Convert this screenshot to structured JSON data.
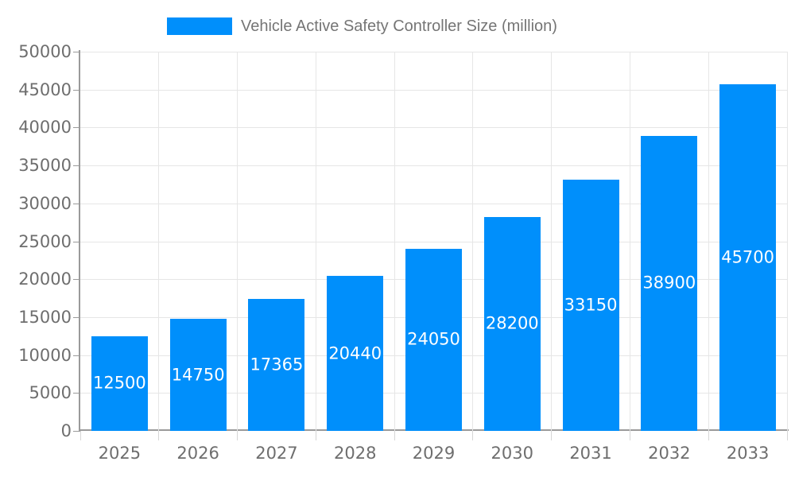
{
  "legend": {
    "series_label": "Vehicle Active Safety Controller Size (million)",
    "position": "top"
  },
  "chart_data": {
    "type": "bar",
    "title": "Vehicle Active Safety Controller Size (million)",
    "categories": [
      "2025",
      "2026",
      "2027",
      "2028",
      "2029",
      "2030",
      "2031",
      "2032",
      "2033"
    ],
    "values": [
      12500,
      14750,
      17365,
      20440,
      24050,
      28200,
      33150,
      38900,
      45700
    ],
    "xlabel": "",
    "ylabel": "",
    "ylim": [
      0,
      50000
    ],
    "yticks": [
      0,
      5000,
      10000,
      15000,
      20000,
      25000,
      30000,
      35000,
      40000,
      45000,
      50000
    ],
    "grid": true,
    "legend_position": "top",
    "value_labels_inside_bars": true,
    "colors": {
      "bar": "#008FFB",
      "bar_label": "#FFFFFF",
      "grid": "#E6E6E6",
      "axis_line": "#9A9A9A",
      "x_tick": "#D6D6D6",
      "axis_text": "#6E6E6E",
      "legend_text": "#757575",
      "background": "#FFFFFF"
    }
  }
}
